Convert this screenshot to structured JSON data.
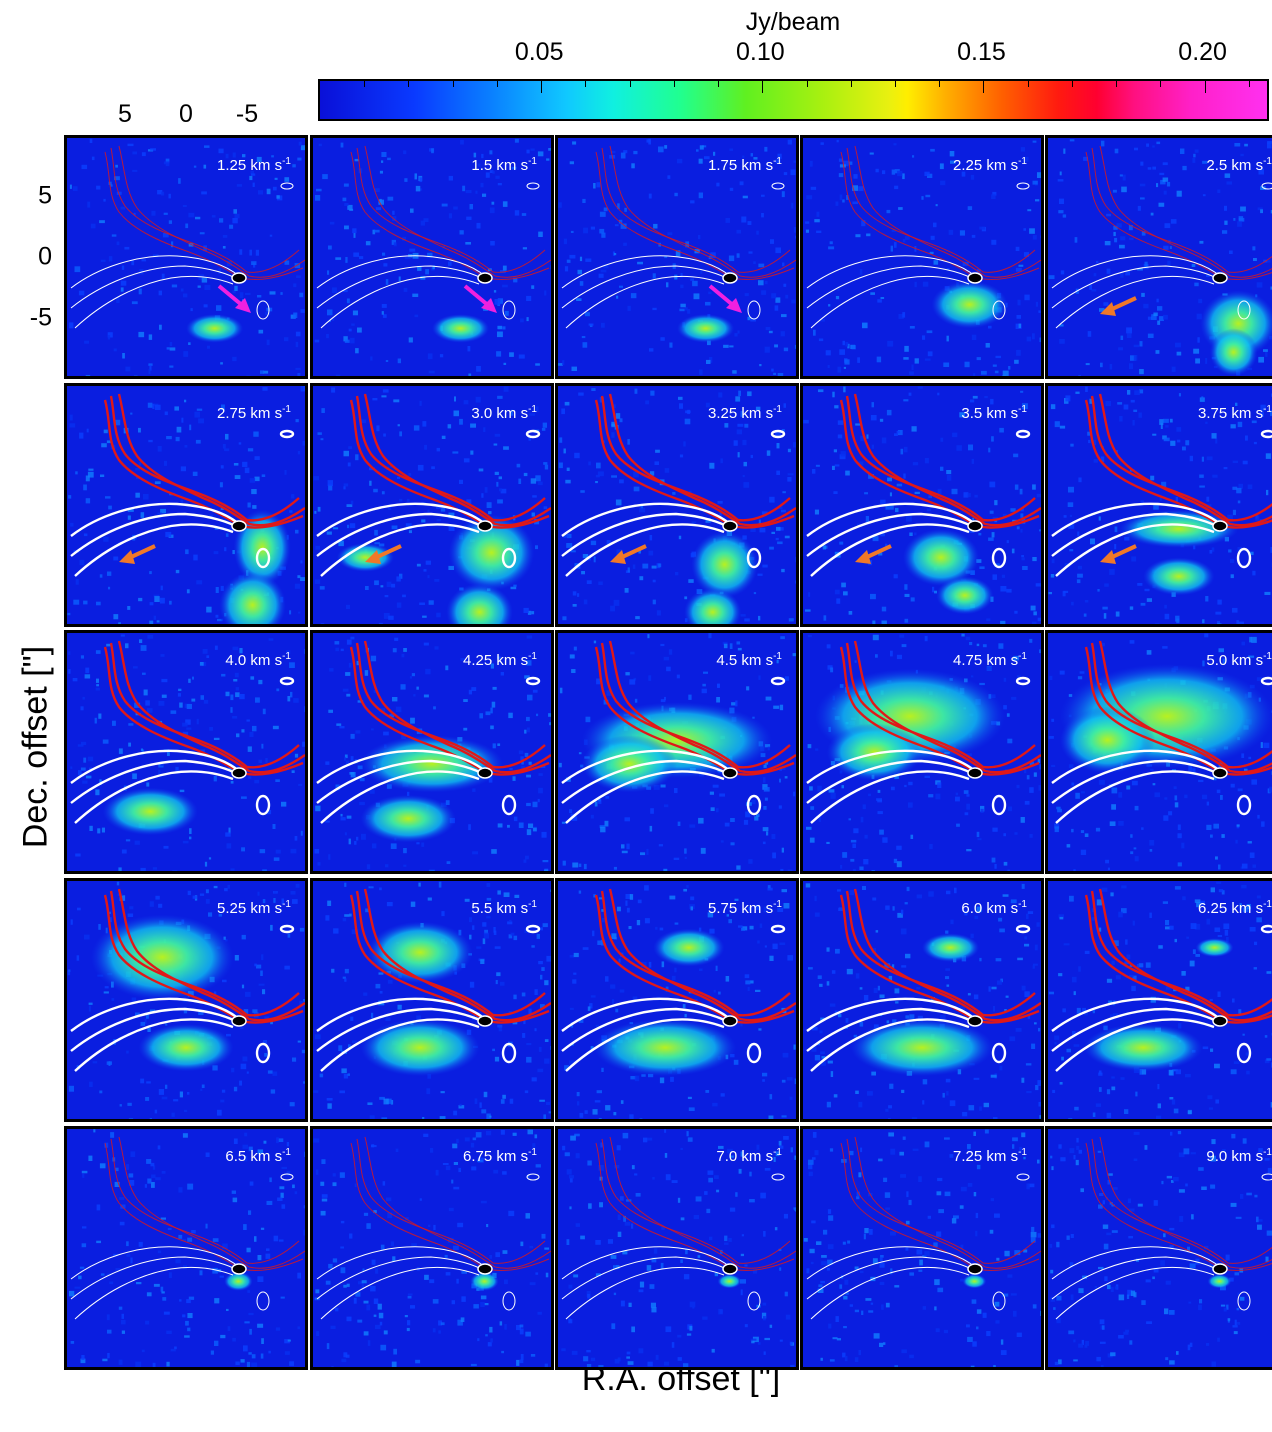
{
  "chart_data": {
    "type": "heatmap",
    "colorbar": {
      "label": "Jy/beam",
      "tick_labels": [
        "0.05",
        "0.10",
        "0.15",
        "0.20"
      ],
      "ticks": [
        0.05,
        0.1,
        0.15,
        0.2
      ],
      "range": [
        0.0,
        0.215
      ],
      "colormap": [
        "#0a10d8",
        "#0a7fff",
        "#10f0e0",
        "#60f020",
        "#ffee00",
        "#ff6000",
        "#ff0030",
        "#ff30f0"
      ]
    },
    "x_axis": {
      "label": "R.A. offset [\"]",
      "tick_labels": [
        "5",
        "0",
        "-5"
      ],
      "ticks": [
        5,
        0,
        -5
      ],
      "range": [
        10,
        -10
      ]
    },
    "y_axis": {
      "label": "Dec. offset [\"]",
      "tick_labels": [
        "5",
        "0",
        "-5"
      ],
      "ticks": [
        5,
        0,
        -5
      ],
      "range": [
        -10,
        10
      ]
    },
    "velocity_unit": "km s",
    "velocity_unit_exp": "-1",
    "contour_colors": {
      "red": "#e01818",
      "white": "#ffffff"
    },
    "arrow_colors": {
      "magenta": "#f020e0",
      "orange": "#f07828"
    },
    "panels": [
      {
        "velocity": "1.25",
        "emission": [
          [
            0.62,
            0.2,
            0.12,
            0.06
          ]
        ],
        "arrow": "magenta"
      },
      {
        "velocity": "1.5",
        "emission": [
          [
            0.62,
            0.2,
            0.12,
            0.06
          ]
        ],
        "arrow": "magenta"
      },
      {
        "velocity": "1.75",
        "emission": [
          [
            0.62,
            0.2,
            0.12,
            0.06
          ]
        ],
        "arrow": "magenta"
      },
      {
        "velocity": "2.25",
        "emission": [
          [
            0.7,
            0.3,
            0.16,
            0.1
          ]
        ],
        "arrow": ""
      },
      {
        "velocity": "2.5",
        "emission": [
          [
            0.8,
            0.22,
            0.16,
            0.14
          ],
          [
            0.78,
            0.1,
            0.1,
            0.1
          ]
        ],
        "arrow": "orange"
      },
      {
        "velocity": "2.75",
        "emission": [
          [
            0.82,
            0.32,
            0.12,
            0.16
          ],
          [
            0.78,
            0.08,
            0.14,
            0.14
          ]
        ],
        "arrow": "orange"
      },
      {
        "velocity": "3.0",
        "emission": [
          [
            0.75,
            0.3,
            0.18,
            0.16
          ],
          [
            0.7,
            0.05,
            0.14,
            0.12
          ],
          [
            0.22,
            0.28,
            0.12,
            0.06
          ]
        ],
        "arrow": "orange"
      },
      {
        "velocity": "3.25",
        "emission": [
          [
            0.7,
            0.25,
            0.14,
            0.14
          ],
          [
            0.65,
            0.05,
            0.12,
            0.1
          ]
        ],
        "arrow": "orange"
      },
      {
        "velocity": "3.5",
        "emission": [
          [
            0.58,
            0.28,
            0.16,
            0.12
          ],
          [
            0.68,
            0.12,
            0.12,
            0.08
          ]
        ],
        "arrow": "orange"
      },
      {
        "velocity": "3.75",
        "emission": [
          [
            0.55,
            0.4,
            0.25,
            0.08
          ],
          [
            0.55,
            0.2,
            0.15,
            0.08
          ]
        ],
        "arrow": "orange"
      },
      {
        "velocity": "4.0",
        "emission": [
          [
            0.35,
            0.25,
            0.2,
            0.1
          ]
        ],
        "arrow": ""
      },
      {
        "velocity": "4.25",
        "emission": [
          [
            0.5,
            0.45,
            0.3,
            0.12
          ],
          [
            0.4,
            0.22,
            0.2,
            0.1
          ]
        ],
        "arrow": ""
      },
      {
        "velocity": "4.5",
        "emission": [
          [
            0.5,
            0.55,
            0.4,
            0.16
          ],
          [
            0.3,
            0.45,
            0.2,
            0.12
          ]
        ],
        "arrow": ""
      },
      {
        "velocity": "4.75",
        "emission": [
          [
            0.45,
            0.65,
            0.4,
            0.2
          ],
          [
            0.3,
            0.5,
            0.2,
            0.12
          ]
        ],
        "arrow": ""
      },
      {
        "velocity": "5.0",
        "emission": [
          [
            0.5,
            0.65,
            0.45,
            0.22
          ],
          [
            0.25,
            0.55,
            0.2,
            0.14
          ]
        ],
        "arrow": ""
      },
      {
        "velocity": "5.25",
        "emission": [
          [
            0.4,
            0.68,
            0.3,
            0.18
          ],
          [
            0.5,
            0.3,
            0.2,
            0.1
          ]
        ],
        "arrow": ""
      },
      {
        "velocity": "5.5",
        "emission": [
          [
            0.45,
            0.7,
            0.22,
            0.13
          ],
          [
            0.45,
            0.3,
            0.25,
            0.12
          ]
        ],
        "arrow": ""
      },
      {
        "velocity": "5.75",
        "emission": [
          [
            0.55,
            0.72,
            0.15,
            0.08
          ],
          [
            0.45,
            0.3,
            0.3,
            0.12
          ]
        ],
        "arrow": ""
      },
      {
        "velocity": "6.0",
        "emission": [
          [
            0.62,
            0.72,
            0.12,
            0.06
          ],
          [
            0.5,
            0.3,
            0.3,
            0.12
          ]
        ],
        "arrow": ""
      },
      {
        "velocity": "6.25",
        "emission": [
          [
            0.7,
            0.72,
            0.08,
            0.04
          ],
          [
            0.4,
            0.3,
            0.25,
            0.1
          ]
        ],
        "arrow": ""
      },
      {
        "velocity": "6.5",
        "emission": [
          [
            0.72,
            0.36,
            0.06,
            0.04
          ]
        ],
        "arrow": ""
      },
      {
        "velocity": "6.75",
        "emission": [
          [
            0.72,
            0.36,
            0.06,
            0.04
          ]
        ],
        "arrow": ""
      },
      {
        "velocity": "7.0",
        "emission": [
          [
            0.72,
            0.36,
            0.05,
            0.03
          ]
        ],
        "arrow": ""
      },
      {
        "velocity": "7.25",
        "emission": [
          [
            0.72,
            0.36,
            0.05,
            0.03
          ]
        ],
        "arrow": ""
      },
      {
        "velocity": "9.0",
        "emission": [
          [
            0.72,
            0.36,
            0.05,
            0.03
          ]
        ],
        "arrow": ""
      }
    ]
  }
}
